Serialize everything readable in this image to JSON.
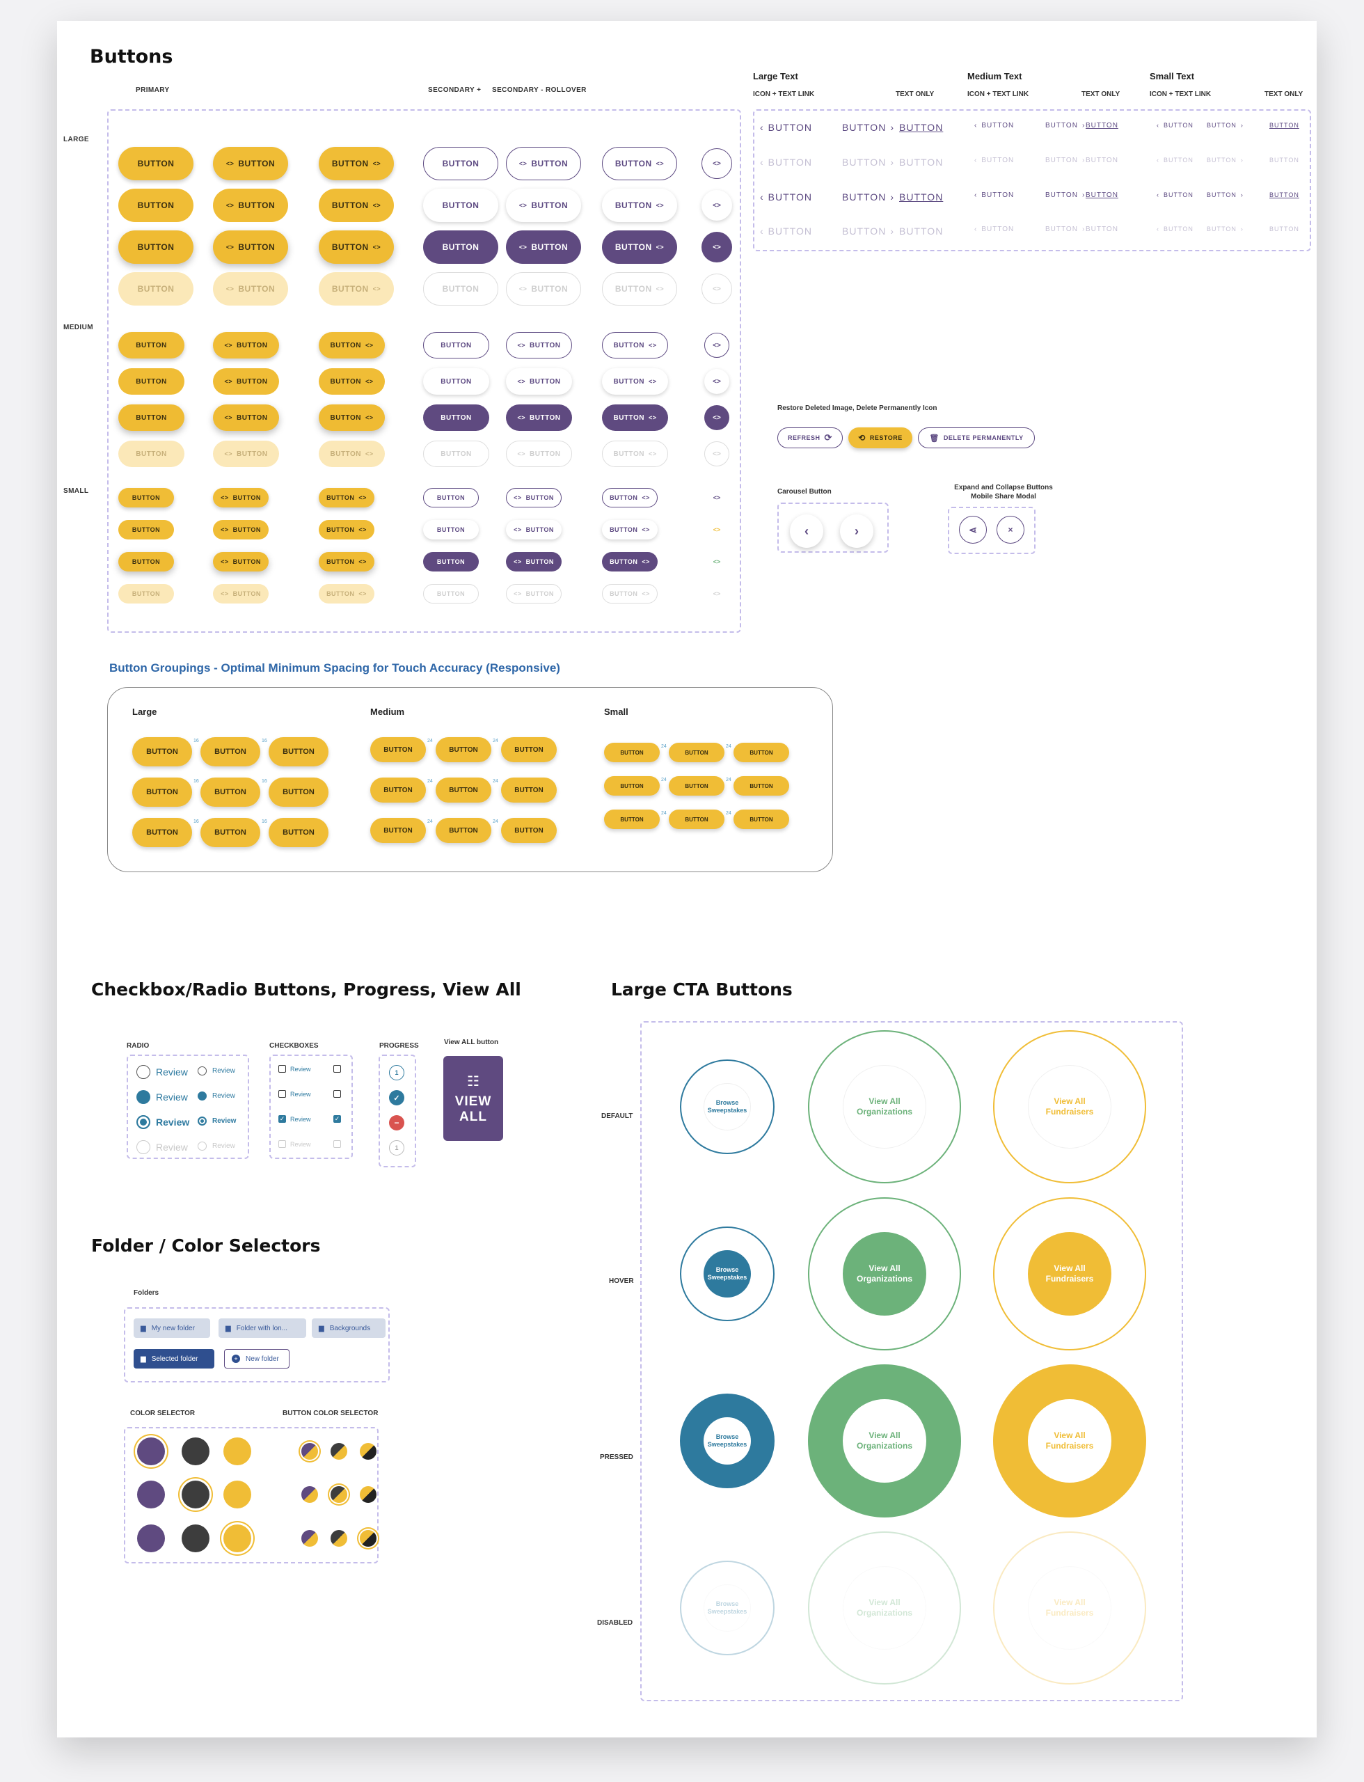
{
  "buttons": {
    "title": "Buttons",
    "col_primary": "PRIMARY",
    "col_secondary": "SECONDARY +",
    "col_rollover": "SECONDARY - ROLLOVER",
    "row_large": "LARGE",
    "row_medium": "MEDIUM",
    "row_small": "SMALL",
    "button_label": "BUTTON",
    "icon_glyph": "<>"
  },
  "text_links": {
    "large_title": "Large Text",
    "medium_title": "Medium Text",
    "small_title": "Small Text",
    "icon_text_col": "ICON + TEXT LINK",
    "text_only_col": "TEXT ONLY",
    "label": "BUTTON"
  },
  "restore": {
    "caption": "Restore Deleted Image, Delete Permanently Icon",
    "refresh": "REFRESH",
    "restore": "RESTORE",
    "delete": "DELETE PERMANENTLY"
  },
  "carousel": {
    "caption": "Carousel Button"
  },
  "expand": {
    "caption_line1": "Expand and Collapse Buttons",
    "caption_line2": "Mobile Share Modal"
  },
  "groupings": {
    "title": "Button Groupings - Optimal Minimum Spacing for Touch Accuracy (Responsive)",
    "large": "Large",
    "medium": "Medium",
    "small": "Small",
    "label": "BUTTON",
    "gap_large": "16",
    "gap_medium": "24",
    "gap_small": "24"
  },
  "checkbox_section": {
    "title": "Checkbox/Radio Buttons, Progress, View All",
    "radio_caption": "RADIO",
    "checkbox_caption": "CHECKBOXES",
    "progress_caption": "PROGRESS",
    "viewall_caption": "View ALL button",
    "review": "Review",
    "progress_step": "1",
    "viewall_line1": "VIEW",
    "viewall_line2": "ALL"
  },
  "folders": {
    "title": "Folder /  Color Selectors",
    "caption": "Folders",
    "items": [
      "My new folder",
      "Folder with lon...",
      "Backgrounds"
    ],
    "selected": "Selected folder",
    "new_folder": "New folder"
  },
  "color_selector": {
    "caption": "COLOR SELECTOR",
    "button_caption": "BUTTON COLOR SELECTOR",
    "colors": [
      "#5f4a80",
      "#3d3d3d",
      "#f0bd36"
    ]
  },
  "cta": {
    "title": "Large CTA Buttons",
    "state_default": "DEFAULT",
    "state_hover": "HOVER",
    "state_pressed": "PRESSED",
    "state_disabled": "DISABLED",
    "sweep_line1": "Browse",
    "sweep_line2": "Sweepstakes",
    "orgs_line1": "View All",
    "orgs_line2": "Organizations",
    "fund_line1": "View All",
    "fund_line2": "Fundraisers",
    "colors": {
      "blue": "#2e7a9e",
      "green": "#6cb27a",
      "yellow": "#f0bd36"
    }
  }
}
